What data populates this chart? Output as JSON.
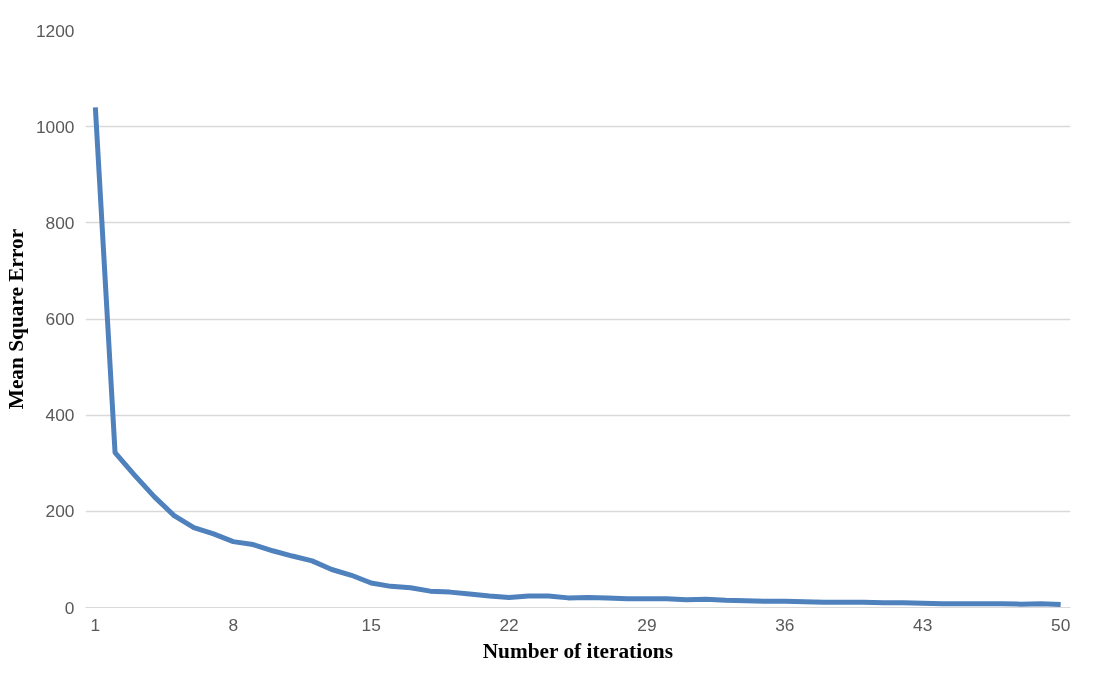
{
  "chart_data": {
    "type": "line",
    "xlabel": "Number of iterations",
    "ylabel": "Mean Square Error",
    "x": [
      1,
      2,
      3,
      4,
      5,
      6,
      7,
      8,
      9,
      10,
      11,
      12,
      13,
      14,
      15,
      16,
      17,
      18,
      19,
      20,
      21,
      22,
      23,
      24,
      25,
      26,
      27,
      28,
      29,
      30,
      31,
      32,
      33,
      34,
      35,
      36,
      37,
      38,
      39,
      40,
      41,
      42,
      43,
      44,
      45,
      46,
      47,
      48,
      49,
      50
    ],
    "series": [
      {
        "color": "#4f81bd",
        "values": [
          1040,
          322,
          275,
          230,
          191,
          166,
          153,
          137,
          131,
          118,
          107,
          97,
          79,
          67,
          51,
          44,
          41,
          34,
          32,
          28,
          24,
          21,
          24,
          24,
          20,
          21,
          20,
          18,
          18,
          18,
          16,
          17,
          15,
          14,
          13,
          13,
          12,
          11,
          11,
          11,
          10,
          10,
          9,
          8,
          8,
          8,
          8,
          7,
          8,
          6
        ]
      }
    ],
    "xlim": [
      0.5,
      50.5
    ],
    "xticks": [
      1,
      8,
      15,
      22,
      29,
      36,
      43,
      50
    ],
    "ylim": [
      0,
      1200
    ],
    "yticks": [
      0,
      200,
      400,
      600,
      800,
      1000,
      1200
    ],
    "grid": "y",
    "marker": "none",
    "line_style": "solid"
  }
}
